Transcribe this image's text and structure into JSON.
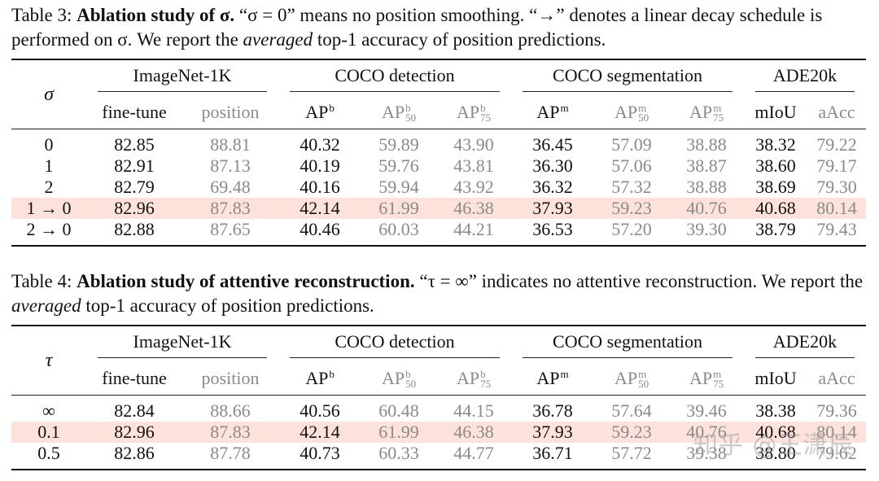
{
  "table3": {
    "caption_label": "Table 3:",
    "caption_bold": "Ablation study of σ.",
    "caption_text1": " “σ = 0” means no position smoothing. “→” denotes a linear decay schedule is performed on σ. We report the ",
    "caption_italic": "averaged",
    "caption_text2": " top-1 accuracy of position predictions.",
    "param_symbol": "σ",
    "groups": [
      "ImageNet-1K",
      "COCO detection",
      "COCO segmentation",
      "ADE20k"
    ],
    "subheaders": {
      "in_fine": "fine-tune",
      "in_pos": "position",
      "det_ap": "AP",
      "det_ap_sup": "b",
      "det_ap50": "AP",
      "det_ap50_sup": "b",
      "det_ap50_sub": "50",
      "det_ap75": "AP",
      "det_ap75_sup": "b",
      "det_ap75_sub": "75",
      "seg_ap": "AP",
      "seg_ap_sup": "m",
      "seg_ap50": "AP",
      "seg_ap50_sup": "m",
      "seg_ap50_sub": "50",
      "seg_ap75": "AP",
      "seg_ap75_sup": "m",
      "seg_ap75_sub": "75",
      "ade_miou": "mIoU",
      "ade_aacc": "aAcc"
    },
    "rows": [
      [
        "0",
        "82.85",
        "88.81",
        "40.32",
        "59.89",
        "43.90",
        "36.45",
        "57.09",
        "38.88",
        "38.32",
        "79.22"
      ],
      [
        "1",
        "82.91",
        "87.13",
        "40.19",
        "59.76",
        "43.81",
        "36.30",
        "57.06",
        "38.87",
        "38.60",
        "79.17"
      ],
      [
        "2",
        "82.79",
        "69.48",
        "40.16",
        "59.94",
        "43.92",
        "36.32",
        "57.32",
        "38.88",
        "38.69",
        "79.30"
      ],
      [
        "1 → 0",
        "82.96",
        "87.83",
        "42.14",
        "61.99",
        "46.38",
        "37.93",
        "59.23",
        "40.76",
        "40.68",
        "80.14"
      ],
      [
        "2 → 0",
        "82.88",
        "87.65",
        "40.46",
        "60.03",
        "44.21",
        "36.53",
        "57.20",
        "39.30",
        "38.79",
        "79.43"
      ]
    ]
  },
  "table4": {
    "caption_label": "Table 4:",
    "caption_bold": "Ablation study of attentive reconstruction.",
    "caption_text1": " “τ = ∞” indicates no attentive reconstruction. We report the ",
    "caption_italic": "averaged",
    "caption_text2": " top-1 accuracy of position predictions.",
    "param_symbol": "τ",
    "groups": [
      "ImageNet-1K",
      "COCO detection",
      "COCO segmentation",
      "ADE20k"
    ],
    "subheaders": {
      "in_fine": "fine-tune",
      "in_pos": "position",
      "det_ap": "AP",
      "det_ap_sup": "b",
      "det_ap50": "AP",
      "det_ap50_sup": "b",
      "det_ap50_sub": "50",
      "det_ap75": "AP",
      "det_ap75_sup": "b",
      "det_ap75_sub": "75",
      "seg_ap": "AP",
      "seg_ap_sup": "m",
      "seg_ap50": "AP",
      "seg_ap50_sup": "m",
      "seg_ap50_sub": "50",
      "seg_ap75": "AP",
      "seg_ap75_sup": "m",
      "seg_ap75_sub": "75",
      "ade_miou": "mIoU",
      "ade_aacc": "aAcc"
    },
    "rows": [
      [
        "∞",
        "82.84",
        "88.66",
        "40.56",
        "60.48",
        "44.15",
        "36.78",
        "57.64",
        "39.46",
        "38.38",
        "79.36"
      ],
      [
        "0.1",
        "82.96",
        "87.83",
        "42.14",
        "61.99",
        "46.38",
        "37.93",
        "59.23",
        "40.76",
        "40.68",
        "80.14"
      ],
      [
        "0.5",
        "82.86",
        "87.78",
        "40.73",
        "60.33",
        "44.77",
        "36.71",
        "57.72",
        "39.38",
        "38.80",
        "79.62"
      ]
    ]
  },
  "watermark": "知乎 @王潇辰"
}
